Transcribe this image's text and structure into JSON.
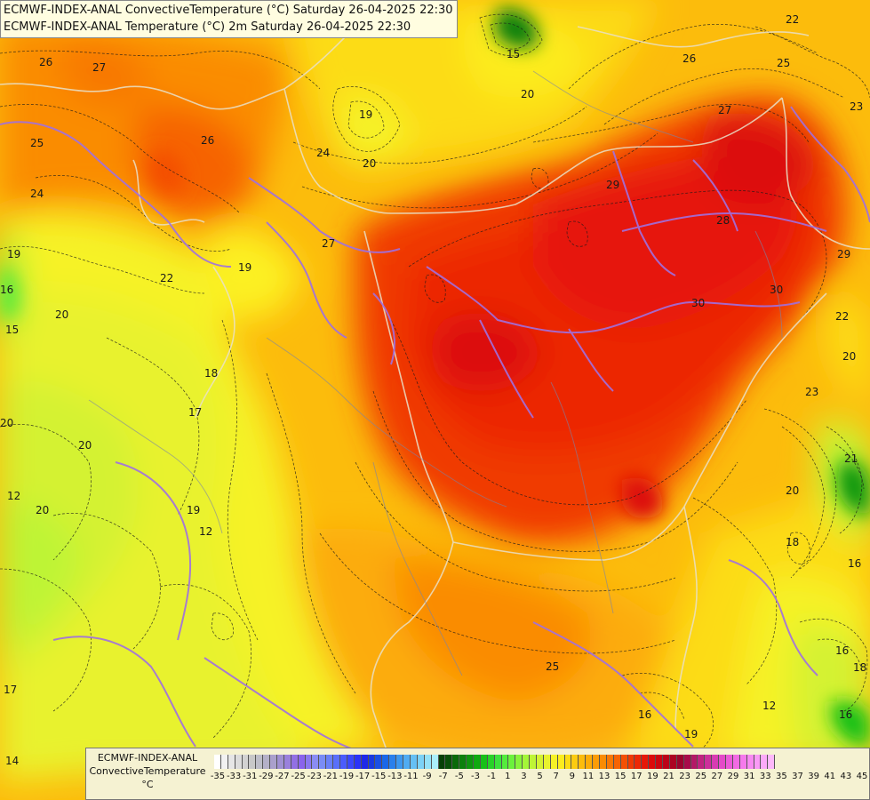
{
  "title_lines": [
    "ECMWF-INDEX-ANAL ConvectiveTemperature (°C) Saturday 26-04-2025 22:30",
    "ECMWF-INDEX-ANAL Temperature (°C) 2m Saturday 26-04-2025 22:30"
  ],
  "legend": {
    "line1": "ECMWF-INDEX-ANAL",
    "line2": "ConvectiveTemperature",
    "line3": "°C",
    "ticks": [
      "-35",
      "-33",
      "-31",
      "-29",
      "-27",
      "-25",
      "-23",
      "-21",
      "-19",
      "-17",
      "-15",
      "-13",
      "-11",
      "-9",
      "-7",
      "-5",
      "-3",
      "-1",
      "1",
      "3",
      "5",
      "7",
      "9",
      "11",
      "13",
      "15",
      "17",
      "19",
      "21",
      "23",
      "25",
      "27",
      "29",
      "31",
      "33",
      "35",
      "37",
      "39",
      "41",
      "43",
      "45"
    ],
    "colors": [
      "#ffffff",
      "#f2f2f2",
      "#e6e6e6",
      "#dcdcdc",
      "#d2d2d2",
      "#c8c8c8",
      "#bdbdc8",
      "#b4b0c8",
      "#aaa0cc",
      "#a090d2",
      "#9a80dc",
      "#9270e4",
      "#8a64ec",
      "#8a78f0",
      "#8a8cf4",
      "#7a8cf6",
      "#6a80f8",
      "#5a70fa",
      "#4a5cfc",
      "#3a48fc",
      "#2a34f8",
      "#1e28e8",
      "#1a3ae0",
      "#1a50e4",
      "#1a68e8",
      "#2a80ec",
      "#3c98f0",
      "#50acf2",
      "#66c0f4",
      "#7cd2f6",
      "#94e2f8",
      "#aaeefa",
      "#064006",
      "#085008",
      "#0a6a0a",
      "#0c800c",
      "#0e960e",
      "#10aa10",
      "#18c018",
      "#28d228",
      "#3ce23c",
      "#54ec3c",
      "#6cf23c",
      "#88f43a",
      "#a4f638",
      "#bef436",
      "#d4f232",
      "#e8f22e",
      "#f6f226",
      "#fcec1e",
      "#fcdc14",
      "#fccc10",
      "#fcbc0c",
      "#fcac08",
      "#fc9c06",
      "#fa8c04",
      "#f87804",
      "#f66404",
      "#f45004",
      "#f03a04",
      "#ec2806",
      "#e61808",
      "#dc0a0a",
      "#cc0610",
      "#bc0418",
      "#ac0422",
      "#9c042e",
      "#a80c4a",
      "#b41866",
      "#c02480",
      "#cc309a",
      "#d83cb2",
      "#e44ac8",
      "#ec5ad8",
      "#f26ae4",
      "#f67aec",
      "#f88af2",
      "#fa9af6",
      "#fcaaf8",
      "#feb8fa"
    ]
  },
  "contour_labels": [
    {
      "text": "26"
    },
    {
      "text": "27"
    },
    {
      "text": "25"
    },
    {
      "text": "24"
    },
    {
      "text": "26"
    },
    {
      "text": "24"
    },
    {
      "text": "19"
    },
    {
      "text": "20"
    },
    {
      "text": "15"
    },
    {
      "text": "20"
    },
    {
      "text": "26"
    },
    {
      "text": "22"
    },
    {
      "text": "25"
    },
    {
      "text": "23"
    },
    {
      "text": "27"
    },
    {
      "text": "29"
    },
    {
      "text": "28"
    },
    {
      "text": "29"
    },
    {
      "text": "30"
    },
    {
      "text": "30"
    },
    {
      "text": "22"
    },
    {
      "text": "20"
    },
    {
      "text": "23"
    },
    {
      "text": "27"
    },
    {
      "text": "19"
    },
    {
      "text": "22"
    },
    {
      "text": "20"
    },
    {
      "text": "16"
    },
    {
      "text": "15"
    },
    {
      "text": "19"
    },
    {
      "text": "20"
    },
    {
      "text": "18"
    },
    {
      "text": "16"
    },
    {
      "text": "17"
    },
    {
      "text": "18"
    },
    {
      "text": "20"
    },
    {
      "text": "20"
    },
    {
      "text": "12"
    },
    {
      "text": "19"
    },
    {
      "text": "12"
    },
    {
      "text": "25"
    },
    {
      "text": "16"
    },
    {
      "text": "19"
    },
    {
      "text": "12"
    },
    {
      "text": "16"
    },
    {
      "text": "14"
    },
    {
      "text": "17"
    },
    {
      "text": "20"
    },
    {
      "text": "18"
    },
    {
      "text": "16"
    },
    {
      "text": "21"
    }
  ]
}
